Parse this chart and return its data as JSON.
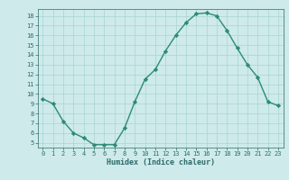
{
  "x": [
    0,
    1,
    2,
    3,
    4,
    5,
    6,
    7,
    8,
    9,
    10,
    11,
    12,
    13,
    14,
    15,
    16,
    17,
    18,
    19,
    20,
    21,
    22,
    23
  ],
  "y": [
    9.5,
    9.0,
    7.2,
    6.0,
    5.5,
    4.8,
    4.8,
    4.8,
    6.5,
    9.2,
    11.5,
    12.5,
    14.4,
    16.0,
    17.3,
    18.2,
    18.3,
    18.0,
    16.5,
    14.7,
    13.0,
    11.7,
    9.2,
    8.8
  ],
  "line_color": "#2d8b78",
  "marker": "D",
  "marker_size": 2.2,
  "linewidth": 1.0,
  "bg_color": "#ceeaea",
  "grid_color": "#a8d4d4",
  "xlabel": "Humidex (Indice chaleur)",
  "ylim": [
    4.5,
    18.7
  ],
  "xlim": [
    -0.5,
    23.5
  ],
  "yticks": [
    5,
    6,
    7,
    8,
    9,
    10,
    11,
    12,
    13,
    14,
    15,
    16,
    17,
    18
  ],
  "xticks": [
    0,
    1,
    2,
    3,
    4,
    5,
    6,
    7,
    8,
    9,
    10,
    11,
    12,
    13,
    14,
    15,
    16,
    17,
    18,
    19,
    20,
    21,
    22,
    23
  ],
  "tick_fontsize": 5.0,
  "label_fontsize": 6.0,
  "axis_color": "#2d6b6b"
}
